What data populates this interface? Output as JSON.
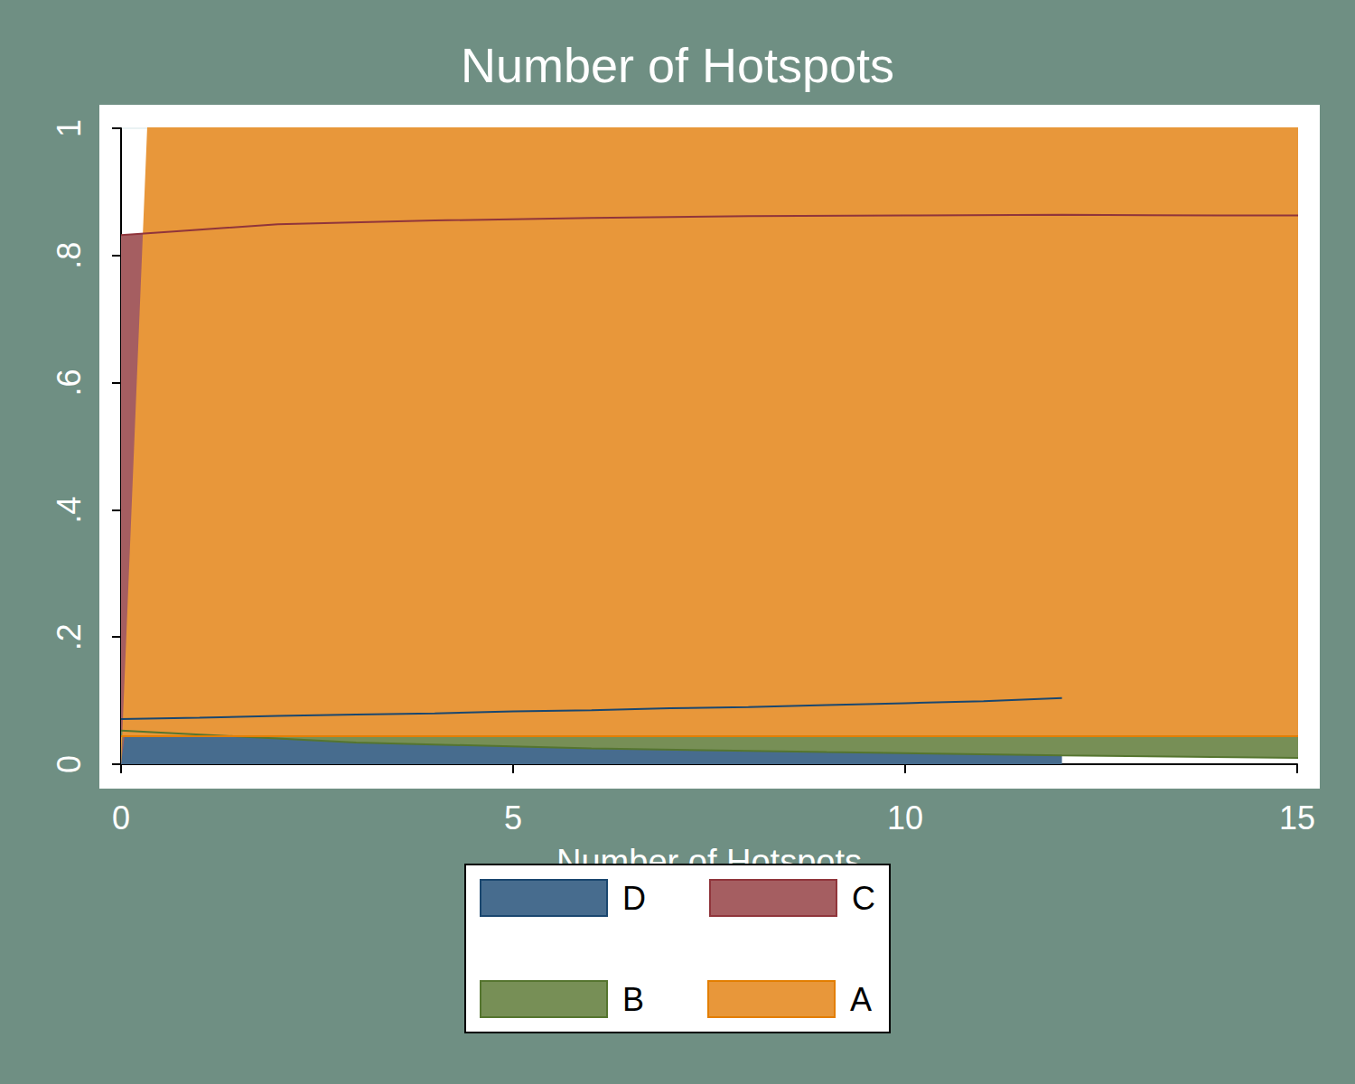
{
  "chart_data": {
    "type": "area",
    "title": "Number of Hotspots",
    "x_label": "Number of Hotspots",
    "x": [
      0,
      1,
      2,
      3,
      4,
      5,
      6,
      7,
      8,
      9,
      10,
      11,
      12
    ],
    "series": [
      {
        "name": "D",
        "color": "#476c8e",
        "values": [
          0.071,
          0.073,
          0.076,
          0.078,
          0.08,
          0.083,
          0.085,
          0.088,
          0.09,
          0.093,
          0.096,
          0.099,
          0.104
        ]
      },
      {
        "name": "C",
        "color": "#a55e61",
        "values": [
          0.832,
          0.849,
          0.855,
          0.859,
          0.862,
          0.863,
          0.864,
          0.863,
          0.863,
          0.861,
          0.859,
          0.857,
          0.852
        ]
      },
      {
        "name": "B",
        "color": "#778f56",
        "values": [
          0.053,
          0.034,
          0.025,
          0.019,
          0.014,
          0.01,
          0.007,
          0.005,
          0.003,
          0.002,
          0.001,
          0.0,
          0.0
        ]
      },
      {
        "name": "A",
        "color": "#e8973a",
        "values": [
          0.044,
          0.044,
          0.044,
          0.044,
          0.044,
          0.044,
          0.044,
          0.044,
          0.044,
          0.044,
          0.044,
          0.044,
          0.044
        ]
      }
    ],
    "xlim": [
      0,
      15
    ],
    "xticks": [
      0,
      5,
      10,
      15
    ],
    "ylim": [
      0,
      1
    ],
    "yticks": [
      0,
      {
        "value": 0.2,
        "label": ".2"
      },
      {
        "value": 0.4,
        "label": ".4"
      },
      {
        "value": 0.6,
        "label": ".6"
      },
      {
        "value": 0.8,
        "label": ".8"
      },
      1
    ],
    "stacked": true,
    "legend": "bottom",
    "grid": true
  }
}
